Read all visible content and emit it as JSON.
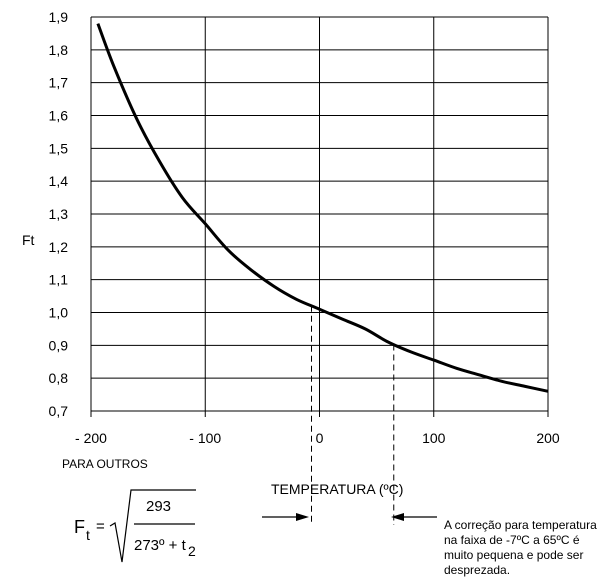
{
  "chart_data": {
    "type": "line",
    "ylabel": "Ft",
    "xlabel": "TEMPERATURA (ºC)",
    "xlim": [
      -200,
      200
    ],
    "ylim": [
      0.7,
      1.9
    ],
    "xticks": [
      -200,
      -100,
      0,
      100,
      200
    ],
    "xtick_labels": [
      "- 200",
      "- 100",
      "0",
      "100",
      "200"
    ],
    "yticks": [
      0.7,
      0.8,
      0.9,
      1.0,
      1.1,
      1.2,
      1.3,
      1.4,
      1.5,
      1.6,
      1.7,
      1.8,
      1.9
    ],
    "ytick_labels": [
      "0,7",
      "0,8",
      "0,9",
      "1,0",
      "1,1",
      "1,2",
      "1,3",
      "1,4",
      "1,5",
      "1,6",
      "1,7",
      "1,8",
      "1,9"
    ],
    "grid": true,
    "series": [
      {
        "x": [
          -194,
          -180,
          -160,
          -140,
          -120,
          -100,
          -80,
          -60,
          -40,
          -20,
          0,
          20,
          40,
          60,
          80,
          100,
          120,
          140,
          160,
          180,
          200
        ],
        "y": [
          1.88,
          1.75,
          1.59,
          1.46,
          1.35,
          1.27,
          1.19,
          1.13,
          1.08,
          1.04,
          1.01,
          0.98,
          0.95,
          0.91,
          0.88,
          0.855,
          0.83,
          0.81,
          0.79,
          0.775,
          0.76
        ]
      }
    ],
    "reference_lines_x": [
      -7,
      65
    ],
    "annotations": {
      "others_label": "PARA OUTROS",
      "note_lines": [
        "A correção para temperatura",
        "na faixa de -7ºC a 65ºC é",
        "muito pequena e pode ser",
        "desprezada."
      ]
    }
  },
  "formula": {
    "lhs": "F",
    "lhs_sub": "t",
    "equals": "=",
    "numerator": "293",
    "denominator_main": "273º + t",
    "denominator_sub": "2"
  }
}
